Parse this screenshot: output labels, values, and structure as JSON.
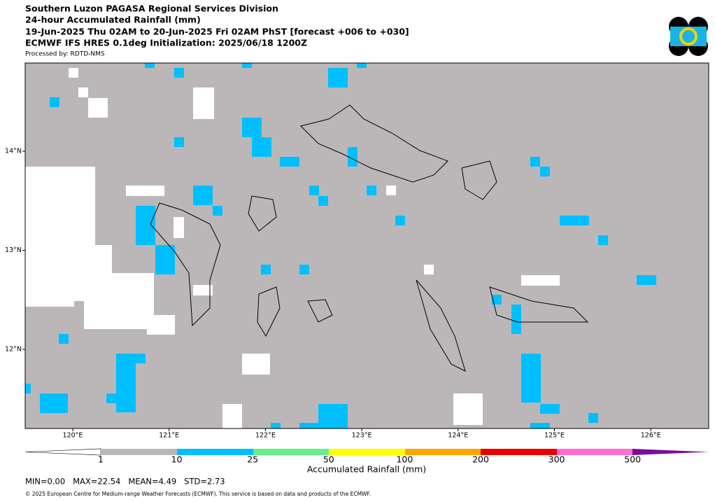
{
  "header": {
    "lines": [
      "Southern Luzon PAGASA Regional Services Division",
      "24-hour Accumulated Rainfall (mm)",
      "19-Jun-2025 Thu 02AM to 20-Jun-2025 Fri 02AM PhST [forecast +006 to +030]",
      "ECMWF IFS HRES 0.1deg Initialization: 2025/06/18 1200Z"
    ],
    "processed_by": "Processed by: RDTD-NMS"
  },
  "map": {
    "lon_labels": [
      "120°E",
      "121°E",
      "122°E",
      "123°E",
      "124°E",
      "125°E",
      "126°E"
    ],
    "lat_labels": [
      "14°N",
      "13°N",
      "12°N"
    ]
  },
  "colorbar": {
    "labels": [
      "1",
      "10",
      "25",
      "50",
      "100",
      "200",
      "300",
      "500"
    ],
    "title": "Accumulated Rainfall (mm)"
  },
  "stats": "MIN=0.00   MAX=22.54   MEAN=4.49   STD=2.73",
  "footer": "© 2025 European Centre for Medium-range Weather Forecasts (ECMWF). This service is based on data and products of the ECMWF."
}
